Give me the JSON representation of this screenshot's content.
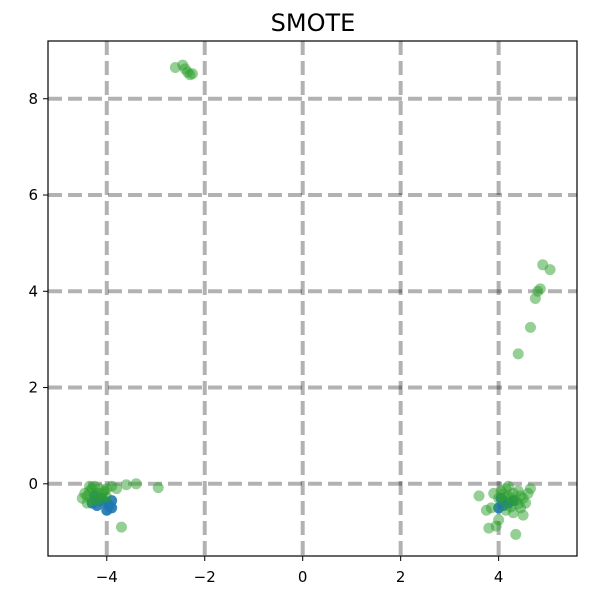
{
  "chart_data": {
    "type": "scatter",
    "title": "SMOTE",
    "xlabel": "",
    "ylabel": "",
    "xlim": [
      -5.2,
      5.6
    ],
    "ylim": [
      -1.5,
      9.2
    ],
    "xticks": [
      -4,
      -2,
      0,
      2,
      4
    ],
    "yticks": [
      0,
      2,
      4,
      6,
      8
    ],
    "xtick_labels": [
      "−4",
      "−2",
      "0",
      "2",
      "4"
    ],
    "ytick_labels": [
      "0",
      "2",
      "4",
      "6",
      "8"
    ],
    "grid": true,
    "legend": "none",
    "series": [
      {
        "color": "#1f77b4",
        "opacity": 0.9,
        "points": [
          [
            -4.3,
            -0.4
          ],
          [
            -4.2,
            -0.45
          ],
          [
            -4.1,
            -0.3
          ],
          [
            -4.0,
            -0.4
          ],
          [
            -3.9,
            -0.35
          ],
          [
            -3.9,
            -0.5
          ],
          [
            -4.0,
            -0.55
          ],
          [
            -4.25,
            -0.25
          ],
          [
            -4.15,
            -0.35
          ],
          [
            -3.95,
            -0.45
          ],
          [
            4.0,
            -0.5
          ],
          [
            4.1,
            -0.45
          ],
          [
            4.2,
            -0.4
          ],
          [
            4.3,
            -0.35
          ],
          [
            4.05,
            -0.3
          ]
        ]
      },
      {
        "color": "#2ca02c",
        "opacity": 0.5,
        "points": [
          [
            -2.6,
            8.65
          ],
          [
            -2.45,
            8.7
          ],
          [
            -2.35,
            8.55
          ],
          [
            -2.3,
            8.5
          ],
          [
            -2.4,
            8.62
          ],
          [
            -2.25,
            8.52
          ],
          [
            4.9,
            4.55
          ],
          [
            5.05,
            4.45
          ],
          [
            4.85,
            4.05
          ],
          [
            4.8,
            4.0
          ],
          [
            4.75,
            3.85
          ],
          [
            4.65,
            3.25
          ],
          [
            4.4,
            2.7
          ],
          [
            -4.5,
            -0.3
          ],
          [
            -4.45,
            -0.2
          ],
          [
            -4.4,
            -0.25
          ],
          [
            -4.35,
            -0.15
          ],
          [
            -4.3,
            -0.1
          ],
          [
            -4.25,
            -0.05
          ],
          [
            -4.2,
            -0.2
          ],
          [
            -4.15,
            -0.1
          ],
          [
            -4.1,
            -0.3
          ],
          [
            -4.05,
            -0.15
          ],
          [
            -4.0,
            -0.1
          ],
          [
            -3.9,
            -0.05
          ],
          [
            -3.8,
            -0.1
          ],
          [
            -3.6,
            -0.02
          ],
          [
            -3.4,
            0.0
          ],
          [
            -2.95,
            -0.08
          ],
          [
            -4.4,
            -0.4
          ],
          [
            -4.3,
            -0.35
          ],
          [
            -3.7,
            -0.9
          ],
          [
            -4.35,
            -0.05
          ],
          [
            -4.2,
            -0.35
          ],
          [
            -4.1,
            -0.2
          ],
          [
            -4.0,
            -0.28
          ],
          [
            3.6,
            -0.25
          ],
          [
            3.9,
            -0.2
          ],
          [
            4.0,
            -0.3
          ],
          [
            4.05,
            -0.15
          ],
          [
            4.1,
            -0.35
          ],
          [
            4.15,
            -0.1
          ],
          [
            4.2,
            -0.25
          ],
          [
            4.25,
            -0.3
          ],
          [
            4.3,
            -0.2
          ],
          [
            4.35,
            -0.35
          ],
          [
            4.4,
            -0.15
          ],
          [
            4.45,
            -0.25
          ],
          [
            4.5,
            -0.3
          ],
          [
            4.55,
            -0.4
          ],
          [
            4.6,
            -0.2
          ],
          [
            4.65,
            -0.1
          ],
          [
            4.5,
            -0.65
          ],
          [
            4.3,
            -0.6
          ],
          [
            4.0,
            -0.75
          ],
          [
            3.8,
            -0.92
          ],
          [
            3.95,
            -0.88
          ],
          [
            4.35,
            -1.05
          ],
          [
            3.75,
            -0.55
          ],
          [
            3.85,
            -0.5
          ],
          [
            4.2,
            -0.05
          ],
          [
            4.4,
            -0.42
          ],
          [
            4.25,
            -0.48
          ],
          [
            4.15,
            -0.55
          ],
          [
            4.45,
            -0.5
          ],
          [
            4.1,
            -0.22
          ]
        ]
      }
    ]
  }
}
